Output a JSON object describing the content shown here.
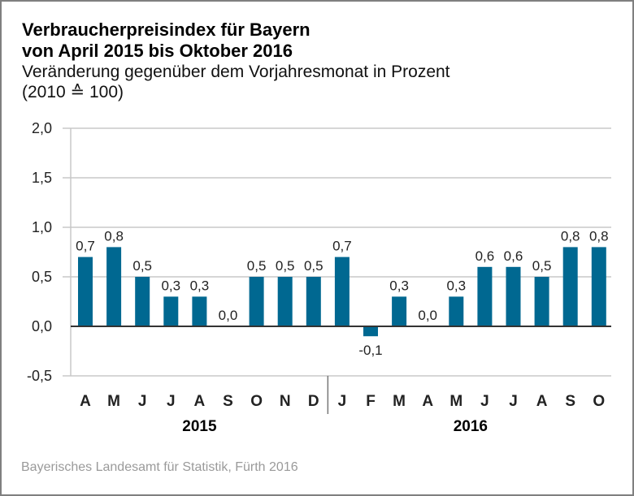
{
  "header": {
    "title_line1": "Verbraucherpreisindex für Bayern",
    "title_line2": "von April 2015 bis Oktober 2016",
    "subtitle_line1": "Veränderung gegenüber dem Vorjahresmonat in Prozent",
    "subtitle_line2": "(2010 ≙ 100)"
  },
  "footer": {
    "source": "Bayerisches Landesamt für Statistik, Fürth 2016"
  },
  "colors": {
    "bar": "#006891",
    "grid": "#c8c8c8",
    "zero_line": "#333333",
    "frame": "#7f7f7f",
    "source_text": "#9a9a9a"
  },
  "chart_data": {
    "type": "bar",
    "title": "Verbraucherpreisindex für Bayern von April 2015 bis Oktober 2016",
    "subtitle": "Veränderung gegenüber dem Vorjahresmonat in Prozent (2010 ≙ 100)",
    "xlabel": "",
    "ylabel": "",
    "ylim": [
      -0.5,
      2.0
    ],
    "yticks": [
      2.0,
      1.5,
      1.0,
      0.5,
      0.0,
      -0.5
    ],
    "ytick_labels": [
      "2,0",
      "1,5",
      "1,0",
      "0,5",
      "0,0",
      "-0,5"
    ],
    "grid": true,
    "categories": [
      "A",
      "M",
      "J",
      "J",
      "A",
      "S",
      "O",
      "N",
      "D",
      "J",
      "F",
      "M",
      "A",
      "M",
      "J",
      "J",
      "A",
      "S",
      "O"
    ],
    "values": [
      0.7,
      0.8,
      0.5,
      0.3,
      0.3,
      0.0,
      0.5,
      0.5,
      0.5,
      0.7,
      -0.1,
      0.3,
      0.0,
      0.3,
      0.6,
      0.6,
      0.5,
      0.8,
      0.8
    ],
    "value_labels": [
      "0,7",
      "0,8",
      "0,5",
      "0,3",
      "0,3",
      "0,0",
      "0,5",
      "0,5",
      "0,5",
      "0,7",
      "-0,1",
      "0,3",
      "0,0",
      "0,3",
      "0,6",
      "0,6",
      "0,5",
      "0,8",
      "0,8"
    ],
    "groups": [
      {
        "label": "2015",
        "start": 0,
        "count": 9
      },
      {
        "label": "2016",
        "start": 9,
        "count": 10
      }
    ]
  }
}
